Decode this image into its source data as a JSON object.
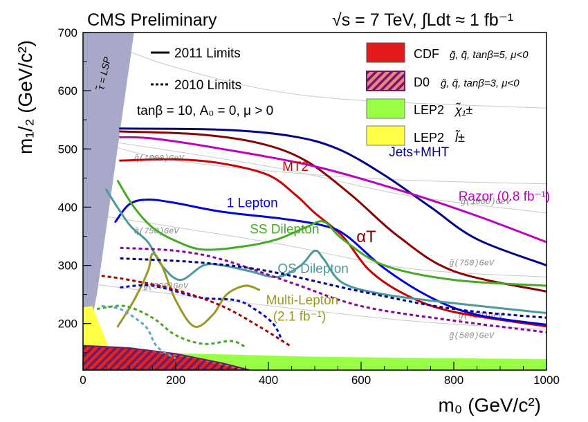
{
  "chart_data": {
    "type": "line",
    "header_left": "CMS Preliminary",
    "header_right": "√s = 7 TeV, ∫Ldt ≈ 1 fb⁻¹",
    "xlabel": "m₀ (GeV/c²)",
    "ylabel": "m₁/₂ (GeV/c²)",
    "xlim": [
      0,
      1000
    ],
    "ylim": [
      120,
      700
    ],
    "x_ticks": [
      "0",
      "200",
      "400",
      "600",
      "800",
      "1000"
    ],
    "y_ticks": [
      "200",
      "300",
      "400",
      "500",
      "600",
      "700"
    ],
    "grid": false,
    "style_legend": [
      {
        "label": "2011 Limits",
        "dash": "solid"
      },
      {
        "label": "2010 Limits",
        "dash": "dotted"
      }
    ],
    "params_text": "tanβ = 10,  A₀ = 0,  μ > 0",
    "lsp_label": "τ̃ = LSP",
    "region_legend": [
      {
        "label": "CDF",
        "detail": "g̃, q̃, tanβ=5, μ<0",
        "color": "#e31a1c",
        "fill": "solid"
      },
      {
        "label": "D0",
        "detail": "g̃, q̃, tanβ=3, μ<0",
        "color": "#7a1f6e",
        "fill": "hatched"
      },
      {
        "label": "LEP2",
        "detail": "χ̃₁±",
        "color": "#99ff44",
        "fill": "solid"
      },
      {
        "label": "LEP2",
        "detail": "l̃±",
        "color": "#ffff44",
        "fill": "solid"
      }
    ],
    "mass_contours": [
      {
        "label": "q̃(1000)GeV",
        "points": [
          [
            0,
            700
          ],
          [
            200,
            640
          ],
          [
            500,
            590
          ],
          [
            1000,
            570
          ]
        ]
      },
      {
        "label": "g̃(1000)GeV",
        "points": [
          [
            0,
            520
          ],
          [
            400,
            470
          ],
          [
            700,
            420
          ],
          [
            1000,
            390
          ]
        ]
      },
      {
        "label": "q̃(750)GeV",
        "points": [
          [
            0,
            520
          ],
          [
            200,
            480
          ],
          [
            600,
            450
          ],
          [
            1000,
            440
          ]
        ]
      },
      {
        "label": "g̃(750)GeV",
        "points": [
          [
            0,
            390
          ],
          [
            400,
            340
          ],
          [
            700,
            295
          ],
          [
            1000,
            280
          ]
        ]
      },
      {
        "label": "g̃(500)GeV",
        "points": [
          [
            0,
            270
          ],
          [
            300,
            240
          ],
          [
            700,
            205
          ],
          [
            1000,
            190
          ]
        ]
      }
    ],
    "contour_label_positions": [
      [
        110,
        480
      ],
      [
        815,
        405
      ],
      [
        110,
        355
      ],
      [
        790,
        300
      ],
      [
        130,
        260
      ],
      [
        810,
        210
      ],
      [
        790,
        175
      ]
    ],
    "series": [
      {
        "name": "Jets+MHT",
        "color": "#00008b",
        "dash": "solid",
        "points": [
          [
            80,
            535
          ],
          [
            300,
            533
          ],
          [
            450,
            522
          ],
          [
            550,
            500
          ],
          [
            650,
            455
          ],
          [
            750,
            400
          ],
          [
            850,
            345
          ],
          [
            1000,
            300
          ]
        ]
      },
      {
        "name": "αT",
        "color": "#8b0000",
        "dash": "solid",
        "points": [
          [
            80,
            530
          ],
          [
            250,
            525
          ],
          [
            380,
            510
          ],
          [
            480,
            480
          ],
          [
            580,
            420
          ],
          [
            680,
            350
          ],
          [
            800,
            290
          ],
          [
            1000,
            255
          ]
        ]
      },
      {
        "name": "Razor (0.8 fb⁻¹)",
        "color": "#c000c0",
        "dash": "solid",
        "points": [
          [
            80,
            520
          ],
          [
            150,
            518
          ],
          [
            300,
            500
          ],
          [
            500,
            470
          ],
          [
            700,
            425
          ],
          [
            850,
            385
          ],
          [
            1000,
            340
          ]
        ]
      },
      {
        "name": "MT2",
        "color": "#cc0000",
        "dash": "solid",
        "points": [
          [
            80,
            480
          ],
          [
            200,
            482
          ],
          [
            300,
            475
          ],
          [
            400,
            455
          ],
          [
            460,
            420
          ],
          [
            500,
            390
          ],
          [
            560,
            350
          ],
          [
            620,
            290
          ],
          [
            700,
            248
          ],
          [
            800,
            220
          ],
          [
            1000,
            195
          ]
        ]
      },
      {
        "name": "1 Lepton",
        "color": "#0000dd",
        "dash": "solid",
        "points": [
          [
            70,
            375
          ],
          [
            100,
            405
          ],
          [
            140,
            413
          ],
          [
            200,
            407
          ],
          [
            300,
            392
          ],
          [
            430,
            380
          ],
          [
            520,
            368
          ],
          [
            570,
            350
          ],
          [
            650,
            295
          ],
          [
            750,
            245
          ],
          [
            850,
            215
          ],
          [
            1000,
            198
          ]
        ]
      },
      {
        "name": "SS Dilepton",
        "color": "#44aa22",
        "dash": "solid",
        "points": [
          [
            75,
            445
          ],
          [
            110,
            400
          ],
          [
            150,
            365
          ],
          [
            200,
            342
          ],
          [
            260,
            327
          ],
          [
            350,
            333
          ],
          [
            420,
            345
          ],
          [
            480,
            365
          ],
          [
            520,
            375
          ],
          [
            560,
            345
          ],
          [
            650,
            300
          ],
          [
            800,
            275
          ],
          [
            1000,
            265
          ]
        ]
      },
      {
        "name": "OS Dilepton",
        "color": "#4b9999",
        "dash": "solid",
        "points": [
          [
            50,
            430
          ],
          [
            100,
            370
          ],
          [
            140,
            340
          ],
          [
            170,
            300
          ],
          [
            210,
            275
          ],
          [
            260,
            300
          ],
          [
            300,
            300
          ],
          [
            360,
            290
          ],
          [
            420,
            280
          ],
          [
            470,
            300
          ],
          [
            500,
            325
          ],
          [
            520,
            310
          ],
          [
            560,
            270
          ],
          [
            650,
            250
          ],
          [
            800,
            235
          ],
          [
            1000,
            218
          ]
        ]
      },
      {
        "name": "Multi-Lepton (2.1 fb⁻¹)",
        "color": "#999922",
        "dash": "solid",
        "points": [
          [
            75,
            195
          ],
          [
            110,
            240
          ],
          [
            140,
            290
          ],
          [
            150,
            320
          ],
          [
            170,
            300
          ],
          [
            200,
            240
          ],
          [
            240,
            195
          ],
          [
            280,
            215
          ],
          [
            310,
            250
          ],
          [
            350,
            265
          ],
          [
            380,
            258
          ]
        ]
      },
      {
        "name": "",
        "color": "#8800aa",
        "dash": "dotted",
        "points": [
          [
            80,
            330
          ],
          [
            200,
            325
          ],
          [
            300,
            310
          ],
          [
            450,
            270
          ],
          [
            600,
            230
          ],
          [
            800,
            205
          ],
          [
            1000,
            185
          ]
        ]
      },
      {
        "name": "",
        "color": "#00008b",
        "dash": "dotted",
        "points": [
          [
            80,
            312
          ],
          [
            250,
            305
          ],
          [
            400,
            290
          ],
          [
            600,
            255
          ],
          [
            800,
            225
          ],
          [
            1000,
            210
          ]
        ]
      },
      {
        "name": "",
        "color": "#0000dd",
        "dash": "dotted",
        "points": [
          [
            80,
            262
          ],
          [
            150,
            265
          ],
          [
            250,
            245
          ],
          [
            330,
            240
          ],
          [
            370,
            225
          ],
          [
            410,
            200
          ],
          [
            430,
            170
          ]
        ]
      },
      {
        "name": "",
        "color": "#aa0000",
        "dash": "dotted",
        "points": [
          [
            40,
            282
          ],
          [
            100,
            275
          ],
          [
            200,
            258
          ],
          [
            300,
            230
          ],
          [
            380,
            195
          ],
          [
            450,
            160
          ]
        ]
      },
      {
        "name": "",
        "color": "#55aacc",
        "dash": "dotted",
        "points": [
          [
            40,
            230
          ],
          [
            80,
            225
          ],
          [
            120,
            205
          ],
          [
            140,
            190
          ],
          [
            160,
            160
          ],
          [
            200,
            140
          ]
        ]
      },
      {
        "name": "",
        "color": "#44aa22",
        "dash": "dotted",
        "points": [
          [
            30,
            225
          ],
          [
            90,
            230
          ],
          [
            150,
            210
          ],
          [
            200,
            180
          ],
          [
            260,
            165
          ],
          [
            320,
            170
          ],
          [
            350,
            160
          ]
        ]
      }
    ],
    "curve_labels": [
      {
        "text": "Jets+MHT",
        "x": 660,
        "y": 487,
        "color": "#00008b"
      },
      {
        "text": "MT2",
        "x": 430,
        "y": 462,
        "color": "#cc0000"
      },
      {
        "text": "αT",
        "x": 590,
        "y": 340,
        "color": "#8b0000"
      },
      {
        "text": "Razor (0.8 fb⁻¹)",
        "x": 810,
        "y": 411,
        "color": "#c000c0"
      },
      {
        "text": "1 Lepton",
        "x": 310,
        "y": 400,
        "color": "#0000dd"
      },
      {
        "text": "SS Dilepton",
        "x": 360,
        "y": 355,
        "color": "#44aa22"
      },
      {
        "text": "OS Dilepton",
        "x": 420,
        "y": 287,
        "color": "#4b9999"
      },
      {
        "text": "Multi-Lepton",
        "x": 395,
        "y": 233,
        "color": "#999922"
      },
      {
        "text": "(2.1 fb⁻¹)",
        "x": 410,
        "y": 205,
        "color": "#999922"
      }
    ],
    "regions": [
      {
        "name": "stau LSP",
        "color": "#a8a8c8",
        "points": [
          [
            0,
            120
          ],
          [
            0,
            700
          ],
          [
            110,
            700
          ],
          [
            30,
            250
          ],
          [
            15,
            190
          ],
          [
            10,
            120
          ]
        ]
      },
      {
        "name": "LEP2 chargino",
        "color": "#99ff44",
        "points": [
          [
            0,
            120
          ],
          [
            0,
            165
          ],
          [
            150,
            150
          ],
          [
            300,
            147
          ],
          [
            500,
            143
          ],
          [
            700,
            141
          ],
          [
            1000,
            139
          ],
          [
            1000,
            120
          ]
        ]
      },
      {
        "name": "LEP2 slepton",
        "color": "#ffff44",
        "points": [
          [
            0,
            120
          ],
          [
            0,
            228
          ],
          [
            20,
            230
          ],
          [
            40,
            190
          ],
          [
            65,
            140
          ],
          [
            70,
            120
          ]
        ]
      },
      {
        "name": "CDF",
        "color": "#e31a1c",
        "points": [
          [
            0,
            120
          ],
          [
            0,
            163
          ],
          [
            80,
            160
          ],
          [
            160,
            150
          ],
          [
            240,
            140
          ],
          [
            320,
            125
          ],
          [
            335,
            120
          ]
        ]
      },
      {
        "name": "D0",
        "color": "#7a1f6e",
        "points": [
          [
            0,
            120
          ],
          [
            0,
            162
          ],
          [
            100,
            158
          ],
          [
            200,
            148
          ],
          [
            300,
            132
          ],
          [
            360,
            120
          ]
        ]
      }
    ]
  }
}
